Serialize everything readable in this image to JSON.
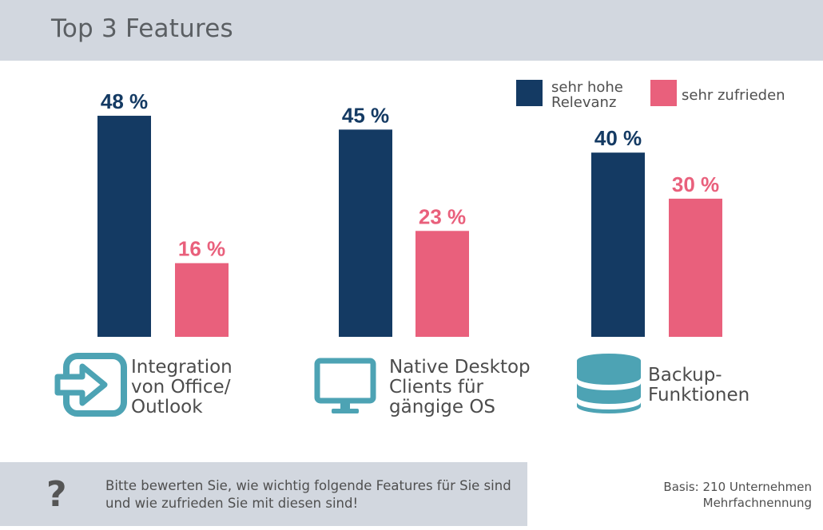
{
  "header": {
    "title": "Top 3 Features"
  },
  "chart_data": {
    "type": "bar",
    "title": "Top 3 Features",
    "categories": [
      [
        "Integration",
        "von Office/",
        "Outlook"
      ],
      [
        "Native Desktop",
        "Clients für",
        "gängige OS"
      ],
      [
        "Backup-",
        "Funktionen"
      ]
    ],
    "category_icons": [
      "sign-in-icon",
      "monitor-icon",
      "database-icon"
    ],
    "series": [
      {
        "name": "sehr hohe Relevanz",
        "legend_lines": [
          "sehr hohe",
          "Relevanz"
        ],
        "color": "#143a63",
        "values": [
          48,
          45,
          40
        ],
        "labels": [
          "48 %",
          "45 %",
          "40 %"
        ]
      },
      {
        "name": "sehr zufrieden",
        "legend_lines": [
          "sehr zufrieden"
        ],
        "color": "#e9607c",
        "values": [
          16,
          23,
          30
        ],
        "labels": [
          "16 %",
          "23 %",
          "30 %"
        ]
      }
    ],
    "unit": "%",
    "ylim": [
      0,
      50
    ],
    "grid": false,
    "legend_position": "top-right",
    "icon_color": "#4da3b4"
  },
  "footer": {
    "question_mark": "?",
    "question": "Bitte bewerten Sie, wie wichtig folgende Features für Sie sind und wie zufrieden Sie mit diesen sind!",
    "basis": "Basis: 210 Unternehmen",
    "note": "Mehrfachnennung"
  }
}
